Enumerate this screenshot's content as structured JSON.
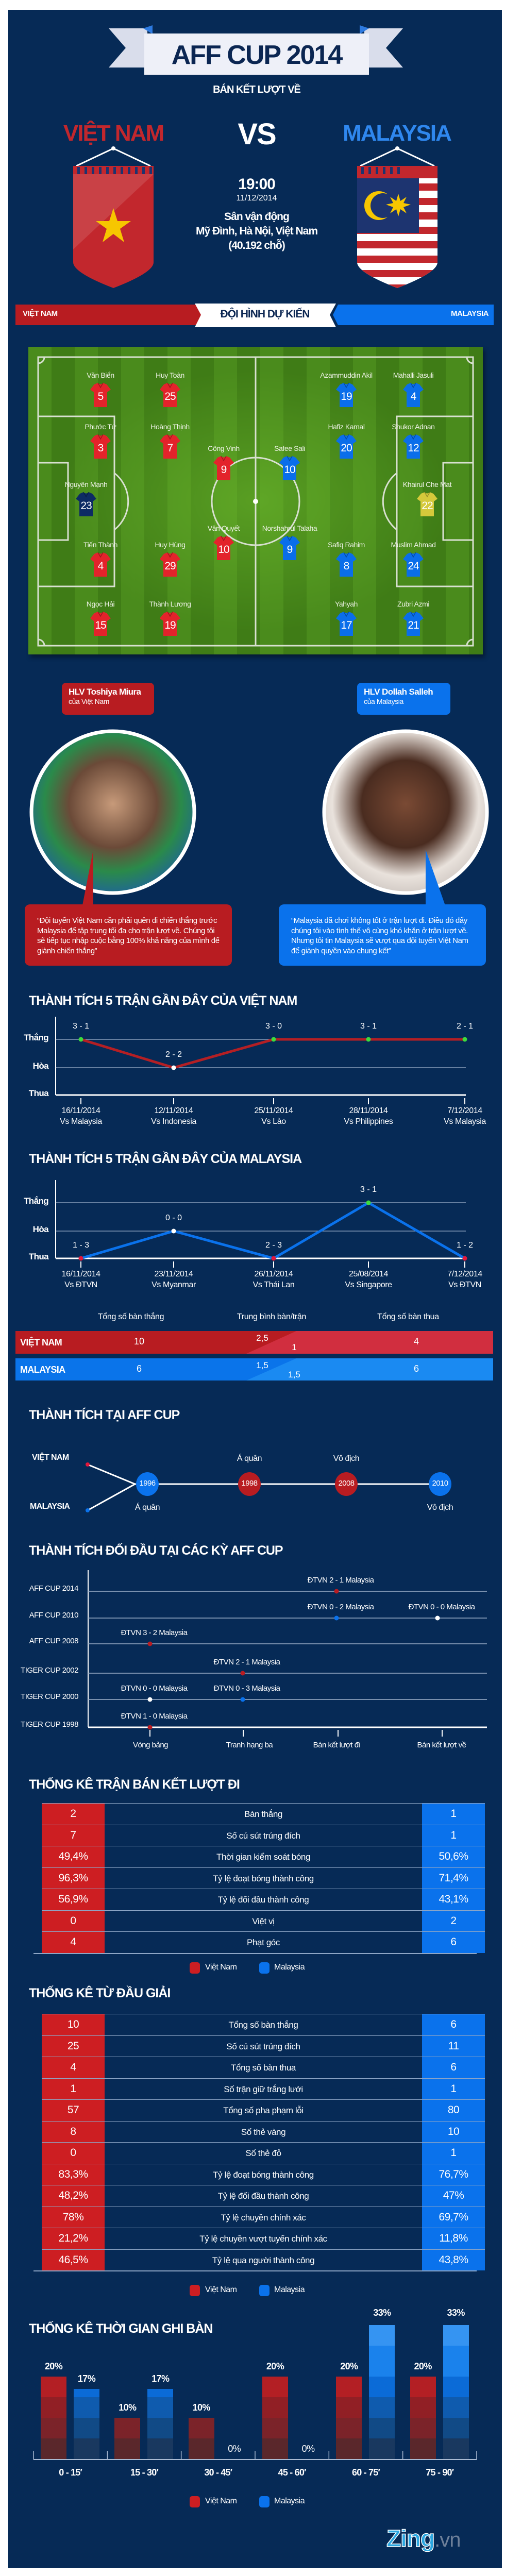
{
  "header": {
    "title": "AFF CUP 2014",
    "subtitle": "BÁN KẾT LƯỢT VỀ",
    "team_home": "VIỆT NAM",
    "vs": "VS",
    "team_away": "MALAYSIA",
    "time": "19:00",
    "date": "11/12/2014",
    "venue_lines": [
      "Sân vận động",
      "Mỹ Đình, Hà Nội, Việt Nam",
      "(40.192 chỗ)"
    ]
  },
  "colors": {
    "navy": "#062a56",
    "vietnam_red": "#cd1e22",
    "malaysia_blue": "#0a72ec",
    "win_dot": "#3ddc3d",
    "loss_dot": "#e3173b"
  },
  "lineup": {
    "title": "ĐỘI HÌNH DỰ KIẾN",
    "home_label": "VIỆT NAM",
    "away_label": "MALAYSIA",
    "home_players": [
      {
        "name": "Nguyên Mạnh",
        "number": "23"
      },
      {
        "name": "Văn Biển",
        "number": "5"
      },
      {
        "name": "Phước Tứ",
        "number": "3"
      },
      {
        "name": "Tiến Thành",
        "number": "4"
      },
      {
        "name": "Ngọc Hải",
        "number": "15"
      },
      {
        "name": "Huy Toàn",
        "number": "25"
      },
      {
        "name": "Hoàng Thịnh",
        "number": "7"
      },
      {
        "name": "Huy Hùng",
        "number": "29"
      },
      {
        "name": "Thành Lương",
        "number": "19"
      },
      {
        "name": "Công Vinh",
        "number": "9"
      },
      {
        "name": "Văn Quyết",
        "number": "10"
      }
    ],
    "away_players": [
      {
        "name": "Khairul Che Mat",
        "number": "22"
      },
      {
        "name": "Mahalli Jasuli",
        "number": "4"
      },
      {
        "name": "Shukor Adnan",
        "number": "12"
      },
      {
        "name": "Muslim Ahmad",
        "number": "24"
      },
      {
        "name": "Zubri Azmi",
        "number": "21"
      },
      {
        "name": "Azammuddin Akil",
        "number": "19"
      },
      {
        "name": "Hafiz Kamal",
        "number": "20"
      },
      {
        "name": "Safiq Rahim",
        "number": "8"
      },
      {
        "name": "Yahyah",
        "number": "17"
      },
      {
        "name": "Safee Sali",
        "number": "10"
      },
      {
        "name": "Norshahrul Talaha",
        "number": "9"
      }
    ]
  },
  "coaches": [
    {
      "name": "HLV Toshiya Miura",
      "team": "của Việt Nam",
      "quote": "“Đội tuyển Việt Nam cần phải quên đi chiến thắng trước Malaysia để tập trung tối đa cho trận lượt về. Chúng tôi sẽ tiếp tục nhập cuộc bằng 100% khả năng của mình để giành chiến thắng”"
    },
    {
      "name": "HLV Dollah Salleh",
      "team": "của Malaysia",
      "quote": "“Malaysia đã chơi không tốt ở trận lượt đi. Điều đó đẩy chúng tôi vào tình thế vô cùng khó khăn ở trận lượt về. Nhưng tôi tin Malaysia sẽ vượt qua đội tuyển Việt Nam để giành quyền vào chung kết”"
    }
  ],
  "goals_summary": {
    "headers": [
      "Tổng số bàn thắng",
      "Trung bình bàn/trận",
      "Tổng số bàn thua"
    ],
    "rows": [
      {
        "team": "VIỆT NAM",
        "scored": "10",
        "avg_for": "2,5",
        "avg_against": "1",
        "conceded": "4"
      },
      {
        "team": "MALAYSIA",
        "scored": "6",
        "avg_for": "1,5",
        "avg_against": "1,5",
        "conceded": "6"
      }
    ]
  },
  "aff_history": {
    "title": "THÀNH TÍCH TẠI AFF CUP",
    "home_label": "VIỆT NAM",
    "away_label": "MALAYSIA",
    "events": [
      {
        "year": "1996",
        "team": "away",
        "result": "Á quân"
      },
      {
        "year": "1998",
        "team": "home",
        "result": "Á quân"
      },
      {
        "year": "2008",
        "team": "home",
        "result": "Vô địch"
      },
      {
        "year": "2010",
        "team": "away",
        "result": "Vô địch"
      }
    ]
  },
  "head_to_head": {
    "title": "THÀNH TÍCH ĐỐI ĐẦU TẠI CÁC KỲ AFF CUP",
    "stages": [
      "Vòng bảng",
      "Tranh hạng ba",
      "Bán kết lượt đi",
      "Bán kết lượt về"
    ],
    "editions": [
      {
        "name": "AFF CUP 2014",
        "matches": [
          {
            "stage": 2,
            "score": "ĐTVN 2 - 1 Malaysia",
            "outcome": "vietnam"
          }
        ]
      },
      {
        "name": "AFF CUP 2010",
        "matches": [
          {
            "stage": 2,
            "score": "ĐTVN 0 - 2 Malaysia",
            "outcome": "malaysia"
          },
          {
            "stage": 3,
            "score": "ĐTVN 0 - 0 Malaysia",
            "outcome": "draw"
          }
        ]
      },
      {
        "name": "AFF CUP 2008",
        "matches": [
          {
            "stage": 0,
            "score": "ĐTVN 3 - 2 Malaysia",
            "outcome": "vietnam"
          }
        ]
      },
      {
        "name": "TIGER CUP 2002",
        "matches": [
          {
            "stage": 1,
            "score": "ĐTVN 2 - 1 Malaysia",
            "outcome": "vietnam"
          }
        ]
      },
      {
        "name": "TIGER CUP 2000",
        "matches": [
          {
            "stage": 0,
            "score": "ĐTVN 0 - 0 Malaysia",
            "outcome": "draw"
          },
          {
            "stage": 1,
            "score": "ĐTVN 0 - 3 Malaysia",
            "outcome": "malaysia"
          }
        ]
      },
      {
        "name": "TIGER CUP 1998",
        "matches": [
          {
            "stage": 0,
            "score": "ĐTVN 1 - 0 Malaysia",
            "outcome": "vietnam"
          }
        ]
      }
    ]
  },
  "semifinal_stats": {
    "title": "THỐNG KÊ TRẬN BÁN KẾT LƯỢT ĐI",
    "rows": [
      {
        "home": "2",
        "label": "Bàn thắng",
        "away": "1"
      },
      {
        "home": "7",
        "label": "Số cú sút trúng đích",
        "away": "1"
      },
      {
        "home": "49,4%",
        "label": "Thời gian kiểm soát bóng",
        "away": "50,6%"
      },
      {
        "home": "96,3%",
        "label": "Tỷ lệ đoạt bóng thành công",
        "away": "71,4%"
      },
      {
        "home": "56,9%",
        "label": "Tỷ lệ đối đầu thành công",
        "away": "43,1%"
      },
      {
        "home": "0",
        "label": "Việt vị",
        "away": "2"
      },
      {
        "home": "4",
        "label": "Phạt góc",
        "away": "6"
      }
    ]
  },
  "tournament_stats": {
    "title": "THỐNG KÊ TỪ ĐẦU GIẢI",
    "rows": [
      {
        "home": "10",
        "label": "Tổng số bàn thắng",
        "away": "6"
      },
      {
        "home": "25",
        "label": "Số cú sút trúng đích",
        "away": "11"
      },
      {
        "home": "4",
        "label": "Tổng số bàn thua",
        "away": "6"
      },
      {
        "home": "1",
        "label": "Số trận giữ trắng lưới",
        "away": "1"
      },
      {
        "home": "57",
        "label": "Tổng số pha phạm lỗi",
        "away": "80"
      },
      {
        "home": "8",
        "label": "Số thẻ vàng",
        "away": "10"
      },
      {
        "home": "0",
        "label": "Số thẻ đỏ",
        "away": "1"
      },
      {
        "home": "83,3%",
        "label": "Tỷ lệ đoạt bóng thành công",
        "away": "76,7%"
      },
      {
        "home": "48,2%",
        "label": "Tỷ lệ đối đầu thành công",
        "away": "47%"
      },
      {
        "home": "78%",
        "label": "Tỷ lệ chuyền chính xác",
        "away": "69,7%"
      },
      {
        "home": "21,2%",
        "label": "Tỷ lệ chuyền vượt tuyến chính xác",
        "away": "11,8%"
      },
      {
        "home": "46,5%",
        "label": "Tỷ lệ qua người thành công",
        "away": "43,8%"
      }
    ]
  },
  "legend": {
    "home": "Việt Nam",
    "away": "Malaysia"
  },
  "brand": {
    "name": "Zing",
    "suffix": ".vn"
  },
  "chart_data": [
    {
      "type": "line",
      "title": "THÀNH TÍCH 5 TRẬN GẦN ĐÂY CỦA VIỆT NAM",
      "y_categories": [
        "Thắng",
        "Hòa",
        "Thua"
      ],
      "points": [
        {
          "date": "16/11/2014",
          "opponent": "Vs Malaysia",
          "score": "3 - 1",
          "result": "Thắng"
        },
        {
          "date": "12/11/2014",
          "opponent": "Vs Indonesia",
          "score": "2 - 2",
          "result": "Hòa"
        },
        {
          "date": "25/11/2014",
          "opponent": "Vs Lào",
          "score": "3 - 0",
          "result": "Thắng"
        },
        {
          "date": "28/11/2014",
          "opponent": "Vs Philippines",
          "score": "3 - 1",
          "result": "Thắng"
        },
        {
          "date": "7/12/2014",
          "opponent": "Vs Malaysia",
          "score": "2 - 1",
          "result": "Thắng"
        }
      ],
      "line_color": "#b41f24"
    },
    {
      "type": "line",
      "title": "THÀNH TÍCH 5 TRẬN GẦN ĐÂY CỦA MALAYSIA",
      "y_categories": [
        "Thắng",
        "Hòa",
        "Thua"
      ],
      "points": [
        {
          "date": "16/11/2014",
          "opponent": "Vs ĐTVN",
          "score": "1 - 3",
          "result": "Thua"
        },
        {
          "date": "23/11/2014",
          "opponent": "Vs Myanmar",
          "score": "0 - 0",
          "result": "Hòa"
        },
        {
          "date": "26/11/2014",
          "opponent": "Vs Thái Lan",
          "score": "2 - 3",
          "result": "Thua"
        },
        {
          "date": "25/08/2014",
          "opponent": "Vs Singapore",
          "score": "3 - 1",
          "result": "Thắng"
        },
        {
          "date": "7/12/2014",
          "opponent": "Vs ĐTVN",
          "score": "1 - 2",
          "result": "Thua"
        }
      ],
      "line_color": "#0a72ec"
    },
    {
      "type": "bar",
      "title": "THỐNG KÊ THỜI GIAN GHI BÀN",
      "categories": [
        "0 - 15′",
        "15 - 30′",
        "30 - 45′",
        "45 - 60′",
        "60 - 75′",
        "75 - 90′"
      ],
      "series": [
        {
          "name": "Việt Nam",
          "values": [
            20,
            10,
            10,
            20,
            20,
            20
          ],
          "labels": [
            "20%",
            "10%",
            "10%",
            "20%",
            "20%",
            "20%"
          ]
        },
        {
          "name": "Malaysia",
          "values": [
            17,
            17,
            0,
            0,
            33,
            33
          ],
          "labels": [
            "17%",
            "17%",
            "0%",
            "0%",
            "33%",
            "33%"
          ]
        }
      ],
      "unit": "%"
    }
  ]
}
